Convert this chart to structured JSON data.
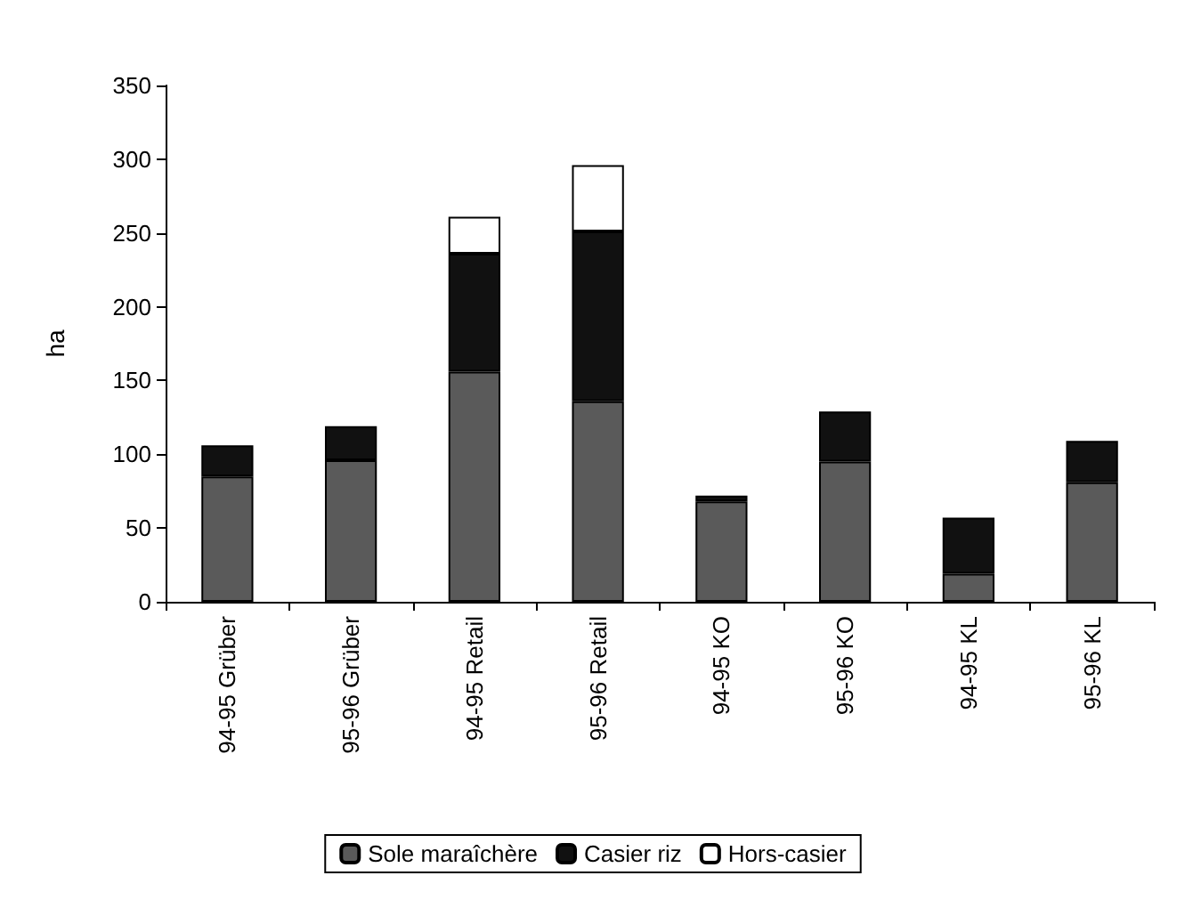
{
  "chart_data": {
    "type": "bar",
    "stacked": true,
    "ylabel": "ha",
    "categories": [
      "94-95 Grüber",
      "95-96 Grüber",
      "94-95 Retail",
      "95-96 Retail",
      "94-95 KO",
      "95-96 KO",
      "94-95 KL",
      "95-96 KL"
    ],
    "series": [
      {
        "name": "Sole maraîchère",
        "color": "#5a5a5a",
        "values": [
          85,
          96,
          156,
          136,
          68,
          95,
          19,
          81
        ]
      },
      {
        "name": "Casier riz",
        "color": "#111111",
        "values": [
          21,
          23,
          80,
          115,
          4,
          34,
          38,
          28
        ]
      },
      {
        "name": "Hors-casier",
        "color": "#ffffff",
        "values": [
          0,
          0,
          25,
          45,
          0,
          0,
          0,
          0
        ]
      }
    ],
    "ylim": [
      0,
      350
    ],
    "yticks": [
      0,
      50,
      100,
      150,
      200,
      250,
      300,
      350
    ],
    "grid": false,
    "legend": "bottom"
  }
}
